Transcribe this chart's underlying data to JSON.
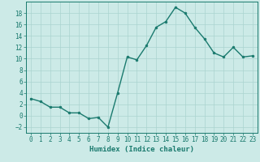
{
  "x": [
    0,
    1,
    2,
    3,
    4,
    5,
    6,
    7,
    8,
    9,
    10,
    11,
    12,
    13,
    14,
    15,
    16,
    17,
    18,
    19,
    20,
    21,
    22,
    23
  ],
  "y": [
    3.0,
    2.5,
    1.5,
    1.5,
    0.5,
    0.5,
    -0.5,
    -0.3,
    -2.0,
    4.0,
    10.3,
    9.8,
    12.3,
    15.5,
    16.5,
    19.0,
    18.0,
    15.5,
    13.5,
    11.0,
    10.3,
    12.0,
    10.3,
    10.5
  ],
  "line_color": "#1a7a6e",
  "marker": "o",
  "marker_size": 2.0,
  "line_width": 1.0,
  "bg_color": "#cceae7",
  "grid_color": "#aad4d0",
  "xlabel": "Humidex (Indice chaleur)",
  "ylim": [
    -3,
    20
  ],
  "xlim": [
    -0.5,
    23.5
  ],
  "yticks": [
    -2,
    0,
    2,
    4,
    6,
    8,
    10,
    12,
    14,
    16,
    18
  ],
  "xticks": [
    0,
    1,
    2,
    3,
    4,
    5,
    6,
    7,
    8,
    9,
    10,
    11,
    12,
    13,
    14,
    15,
    16,
    17,
    18,
    19,
    20,
    21,
    22,
    23
  ],
  "xlabel_fontsize": 6.5,
  "tick_fontsize": 5.5,
  "tick_color": "#1a7a6e",
  "spine_color": "#1a7a6e"
}
